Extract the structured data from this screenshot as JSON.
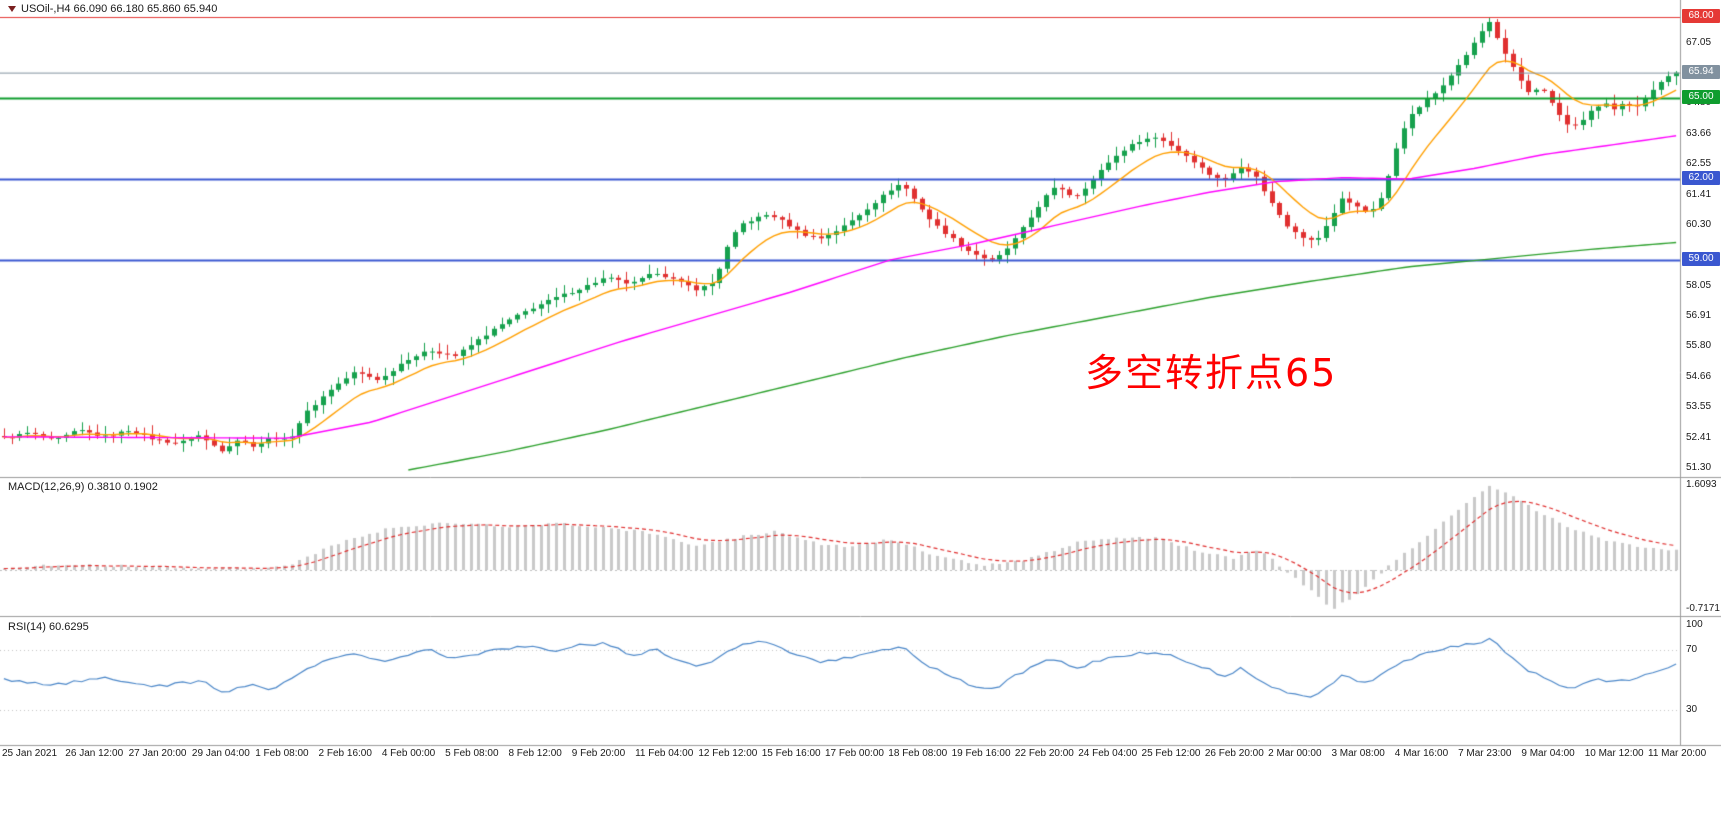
{
  "header": {
    "symbol": "USOil-,H4",
    "ohlc_text": "66.090 66.180 65.860 65.940",
    "line": "USOil-,H4  66.090 66.180 65.860 65.940"
  },
  "annotation": {
    "text": "多空转折点65",
    "color": "#ff0000"
  },
  "colors": {
    "candle_up": "#16a14d",
    "candle_down": "#e03030",
    "ma_fast": "#ff9f00",
    "ma_mid": "#ff00ff",
    "ma_slow": "#2ca02c",
    "macd_hist": "#c9c9c9",
    "macd_signal": "#e03030",
    "macd_zero": "#bdbdbd",
    "rsi_line": "#4a86c8",
    "level_dotted": "#c0c0c0",
    "separator": "#9a9a9a",
    "axis_text": "#1a1a1a"
  },
  "main_panel": {
    "price_labels": [
      {
        "text": "67.05",
        "price": 67.05
      },
      {
        "text": "64.80",
        "price": 64.8
      },
      {
        "text": "63.66",
        "price": 63.66
      },
      {
        "text": "62.55",
        "price": 62.55
      },
      {
        "text": "61.41",
        "price": 61.41
      },
      {
        "text": "60.30",
        "price": 60.3
      },
      {
        "text": "58.05",
        "price": 58.05
      },
      {
        "text": "56.91",
        "price": 56.91
      },
      {
        "text": "55.80",
        "price": 55.8
      },
      {
        "text": "54.66",
        "price": 54.66
      },
      {
        "text": "53.55",
        "price": 53.55
      },
      {
        "text": "52.41",
        "price": 52.41
      },
      {
        "text": "51.30",
        "price": 51.3
      }
    ],
    "hlines": [
      {
        "label": "68.00",
        "price": 68.0,
        "color": "#e53935",
        "width": 1.2
      },
      {
        "label": "65.00",
        "price": 65.0,
        "color": "#0f9d2e",
        "width": 2
      },
      {
        "label": "62.00",
        "price": 62.0,
        "color": "#3a57d0",
        "width": 2
      },
      {
        "label": "59.00",
        "price": 59.0,
        "color": "#3a57d0",
        "width": 2
      }
    ],
    "current_price": {
      "label": "65.94",
      "price": 65.94,
      "color": "#81919f"
    }
  },
  "macd_panel": {
    "label": "MACD(12,26,9) 0.3810 0.1902",
    "max_label": "1.6093",
    "min_label": "-0.7171",
    "max": 1.6093,
    "min": -0.7171
  },
  "rsi_panel": {
    "label": "RSI(14) 60.6295",
    "levels": [
      {
        "text": "100",
        "value": 100
      },
      {
        "text": "70",
        "value": 70
      },
      {
        "text": "30",
        "value": 30
      }
    ]
  },
  "time_axis": {
    "labels": [
      "25 Jan 2021",
      "26 Jan 12:00",
      "27 Jan 20:00",
      "29 Jan 04:00",
      "1 Feb 08:00",
      "2 Feb 16:00",
      "4 Feb 00:00",
      "5 Feb 08:00",
      "8 Feb 12:00",
      "9 Feb 20:00",
      "11 Feb 04:00",
      "12 Feb 12:00",
      "15 Feb 16:00",
      "17 Feb 00:00",
      "18 Feb 08:00",
      "19 Feb 16:00",
      "22 Feb 20:00",
      "24 Feb 04:00",
      "25 Feb 12:00",
      "26 Feb 20:00",
      "2 Mar 00:00",
      "3 Mar 08:00",
      "4 Mar 16:00",
      "7 Mar 23:00",
      "9 Mar 04:00",
      "10 Mar 12:00",
      "11 Mar 20:00"
    ]
  },
  "chart_data": {
    "type": "candlestick",
    "symbol": "USOil",
    "timeframe": "H4",
    "title": "USOil-,H4",
    "current_ohlc": {
      "open": 66.09,
      "high": 66.18,
      "low": 65.86,
      "close": 65.94
    },
    "x_range": [
      "25 Jan 2021",
      "11 Mar 20:00"
    ],
    "y_range": [
      51.3,
      68.0
    ],
    "bars": 216,
    "close_waypoints": [
      [
        0,
        52.4
      ],
      [
        0.015,
        52.6
      ],
      [
        0.03,
        52.3
      ],
      [
        0.045,
        52.7
      ],
      [
        0.06,
        52.45
      ],
      [
        0.075,
        52.7
      ],
      [
        0.09,
        52.35
      ],
      [
        0.105,
        52.2
      ],
      [
        0.115,
        52.55
      ],
      [
        0.13,
        51.95
      ],
      [
        0.14,
        52.35
      ],
      [
        0.15,
        52.1
      ],
      [
        0.16,
        52.45
      ],
      [
        0.17,
        52.3
      ],
      [
        0.18,
        53.3
      ],
      [
        0.195,
        54.2
      ],
      [
        0.21,
        54.85
      ],
      [
        0.225,
        54.55
      ],
      [
        0.24,
        55.3
      ],
      [
        0.255,
        55.65
      ],
      [
        0.27,
        55.45
      ],
      [
        0.285,
        56.1
      ],
      [
        0.3,
        56.7
      ],
      [
        0.315,
        57.2
      ],
      [
        0.33,
        57.6
      ],
      [
        0.345,
        57.95
      ],
      [
        0.36,
        58.35
      ],
      [
        0.375,
        58.1
      ],
      [
        0.39,
        58.55
      ],
      [
        0.405,
        58.15
      ],
      [
        0.415,
        57.9
      ],
      [
        0.425,
        58.2
      ],
      [
        0.432,
        59.4
      ],
      [
        0.44,
        60.3
      ],
      [
        0.45,
        60.55
      ],
      [
        0.458,
        60.7
      ],
      [
        0.468,
        60.35
      ],
      [
        0.478,
        59.95
      ],
      [
        0.488,
        59.8
      ],
      [
        0.5,
        60.15
      ],
      [
        0.51,
        60.6
      ],
      [
        0.52,
        61.1
      ],
      [
        0.53,
        61.6
      ],
      [
        0.537,
        61.85
      ],
      [
        0.545,
        61.2
      ],
      [
        0.555,
        60.4
      ],
      [
        0.565,
        59.9
      ],
      [
        0.575,
        59.4
      ],
      [
        0.585,
        59.1
      ],
      [
        0.592,
        58.95
      ],
      [
        0.602,
        59.55
      ],
      [
        0.612,
        60.4
      ],
      [
        0.622,
        61.3
      ],
      [
        0.63,
        61.75
      ],
      [
        0.64,
        61.3
      ],
      [
        0.65,
        61.9
      ],
      [
        0.66,
        62.6
      ],
      [
        0.67,
        63.1
      ],
      [
        0.68,
        63.45
      ],
      [
        0.69,
        63.55
      ],
      [
        0.7,
        63.15
      ],
      [
        0.71,
        62.75
      ],
      [
        0.72,
        62.2
      ],
      [
        0.73,
        61.95
      ],
      [
        0.74,
        62.5
      ],
      [
        0.748,
        62.15
      ],
      [
        0.757,
        61.2
      ],
      [
        0.767,
        60.3
      ],
      [
        0.777,
        59.85
      ],
      [
        0.784,
        59.65
      ],
      [
        0.792,
        60.35
      ],
      [
        0.8,
        61.3
      ],
      [
        0.808,
        61.0
      ],
      [
        0.816,
        60.75
      ],
      [
        0.824,
        61.3
      ],
      [
        0.832,
        63.0
      ],
      [
        0.84,
        64.35
      ],
      [
        0.85,
        64.9
      ],
      [
        0.86,
        65.4
      ],
      [
        0.87,
        66.25
      ],
      [
        0.878,
        66.9
      ],
      [
        0.884,
        67.5
      ],
      [
        0.889,
        67.85
      ],
      [
        0.895,
        66.9
      ],
      [
        0.901,
        66.25
      ],
      [
        0.907,
        65.6
      ],
      [
        0.913,
        65.1
      ],
      [
        0.919,
        65.5
      ],
      [
        0.925,
        64.85
      ],
      [
        0.931,
        64.3
      ],
      [
        0.937,
        63.85
      ],
      [
        0.943,
        64.15
      ],
      [
        0.95,
        64.55
      ],
      [
        0.957,
        64.85
      ],
      [
        0.963,
        64.55
      ],
      [
        0.969,
        64.8
      ],
      [
        0.976,
        64.6
      ],
      [
        0.983,
        65.15
      ],
      [
        0.99,
        65.6
      ],
      [
        1,
        65.94
      ]
    ],
    "overlays": [
      {
        "name": "MA-fast",
        "type": "ema",
        "period": 10,
        "color": "#ff9f00"
      },
      {
        "name": "MA-mid",
        "type": "line",
        "color": "#ff00ff",
        "waypoints": [
          [
            0,
            52.45
          ],
          [
            0.17,
            52.4
          ],
          [
            0.22,
            53.0
          ],
          [
            0.27,
            54.0
          ],
          [
            0.32,
            55.0
          ],
          [
            0.37,
            56.0
          ],
          [
            0.42,
            56.9
          ],
          [
            0.47,
            57.8
          ],
          [
            0.53,
            59.0
          ],
          [
            0.58,
            59.6
          ],
          [
            0.63,
            60.3
          ],
          [
            0.68,
            61.0
          ],
          [
            0.72,
            61.5
          ],
          [
            0.76,
            61.9
          ],
          [
            0.8,
            62.05
          ],
          [
            0.84,
            62.0
          ],
          [
            0.88,
            62.4
          ],
          [
            0.92,
            62.9
          ],
          [
            0.96,
            63.25
          ],
          [
            1,
            63.6
          ]
        ]
      },
      {
        "name": "MA-slow",
        "type": "line",
        "color": "#2ca02c",
        "start": 0.24,
        "waypoints": [
          [
            0.24,
            51.2
          ],
          [
            0.3,
            51.9
          ],
          [
            0.36,
            52.7
          ],
          [
            0.42,
            53.6
          ],
          [
            0.48,
            54.5
          ],
          [
            0.54,
            55.4
          ],
          [
            0.6,
            56.2
          ],
          [
            0.66,
            56.9
          ],
          [
            0.72,
            57.6
          ],
          [
            0.78,
            58.2
          ],
          [
            0.84,
            58.75
          ],
          [
            0.9,
            59.1
          ],
          [
            0.95,
            59.4
          ],
          [
            1,
            59.65
          ]
        ]
      }
    ],
    "hlines": [
      {
        "price": 68.0,
        "color": "#e53935"
      },
      {
        "price": 65.0,
        "color": "#0f9d2e"
      },
      {
        "price": 62.0,
        "color": "#3a57d0"
      },
      {
        "price": 59.0,
        "color": "#3a57d0"
      }
    ],
    "indicators": [
      {
        "name": "MACD",
        "params": "12,26,9",
        "main_value": 0.381,
        "signal_value": 0.1902,
        "range": [
          -0.7171,
          1.6093
        ],
        "main_waypoints": [
          [
            0,
            0.05
          ],
          [
            0.04,
            0.1
          ],
          [
            0.08,
            0.07
          ],
          [
            0.12,
            0.04
          ],
          [
            0.15,
            0.02
          ],
          [
            0.17,
            0.1
          ],
          [
            0.2,
            0.5
          ],
          [
            0.23,
            0.78
          ],
          [
            0.26,
            0.88
          ],
          [
            0.3,
            0.82
          ],
          [
            0.33,
            0.87
          ],
          [
            0.36,
            0.8
          ],
          [
            0.39,
            0.68
          ],
          [
            0.415,
            0.45
          ],
          [
            0.44,
            0.62
          ],
          [
            0.46,
            0.72
          ],
          [
            0.485,
            0.5
          ],
          [
            0.505,
            0.42
          ],
          [
            0.53,
            0.58
          ],
          [
            0.555,
            0.3
          ],
          [
            0.585,
            0.08
          ],
          [
            0.61,
            0.18
          ],
          [
            0.64,
            0.5
          ],
          [
            0.665,
            0.62
          ],
          [
            0.69,
            0.6
          ],
          [
            0.715,
            0.35
          ],
          [
            0.735,
            0.22
          ],
          [
            0.75,
            0.4
          ],
          [
            0.77,
            -0.1
          ],
          [
            0.785,
            -0.5
          ],
          [
            0.795,
            -0.72
          ],
          [
            0.81,
            -0.45
          ],
          [
            0.82,
            -0.15
          ],
          [
            0.83,
            0.15
          ],
          [
            0.845,
            0.5
          ],
          [
            0.86,
            0.9
          ],
          [
            0.875,
            1.25
          ],
          [
            0.888,
            1.58
          ],
          [
            0.9,
            1.42
          ],
          [
            0.92,
            1.05
          ],
          [
            0.94,
            0.75
          ],
          [
            0.96,
            0.55
          ],
          [
            0.98,
            0.43
          ],
          [
            1,
            0.381
          ]
        ]
      },
      {
        "name": "RSI",
        "params": "14",
        "value": 60.6295,
        "levels": [
          30,
          70
        ],
        "waypoints": [
          [
            0,
            50
          ],
          [
            0.03,
            47
          ],
          [
            0.06,
            51
          ],
          [
            0.09,
            46
          ],
          [
            0.12,
            49
          ],
          [
            0.13,
            42
          ],
          [
            0.15,
            47
          ],
          [
            0.16,
            44
          ],
          [
            0.17,
            50
          ],
          [
            0.19,
            62
          ],
          [
            0.21,
            68
          ],
          [
            0.225,
            62
          ],
          [
            0.24,
            67
          ],
          [
            0.255,
            70
          ],
          [
            0.27,
            64
          ],
          [
            0.285,
            68
          ],
          [
            0.3,
            71
          ],
          [
            0.315,
            72
          ],
          [
            0.33,
            70
          ],
          [
            0.345,
            73
          ],
          [
            0.36,
            75
          ],
          [
            0.375,
            66
          ],
          [
            0.39,
            71
          ],
          [
            0.405,
            62
          ],
          [
            0.415,
            59
          ],
          [
            0.425,
            63
          ],
          [
            0.44,
            73
          ],
          [
            0.458,
            76
          ],
          [
            0.468,
            69
          ],
          [
            0.488,
            61
          ],
          [
            0.5,
            64
          ],
          [
            0.52,
            69
          ],
          [
            0.537,
            72
          ],
          [
            0.555,
            58
          ],
          [
            0.575,
            48
          ],
          [
            0.592,
            43
          ],
          [
            0.602,
            52
          ],
          [
            0.622,
            62
          ],
          [
            0.63,
            65
          ],
          [
            0.64,
            57
          ],
          [
            0.66,
            65
          ],
          [
            0.68,
            68
          ],
          [
            0.69,
            69
          ],
          [
            0.71,
            61
          ],
          [
            0.73,
            53
          ],
          [
            0.74,
            58
          ],
          [
            0.757,
            45
          ],
          [
            0.777,
            40
          ],
          [
            0.784,
            39
          ],
          [
            0.8,
            53
          ],
          [
            0.816,
            47
          ],
          [
            0.832,
            60
          ],
          [
            0.85,
            68
          ],
          [
            0.87,
            73
          ],
          [
            0.889,
            77
          ],
          [
            0.901,
            66
          ],
          [
            0.913,
            55
          ],
          [
            0.925,
            50
          ],
          [
            0.937,
            44
          ],
          [
            0.95,
            50
          ],
          [
            0.963,
            49
          ],
          [
            0.976,
            51
          ],
          [
            0.99,
            57
          ],
          [
            1,
            60.63
          ]
        ]
      }
    ]
  }
}
